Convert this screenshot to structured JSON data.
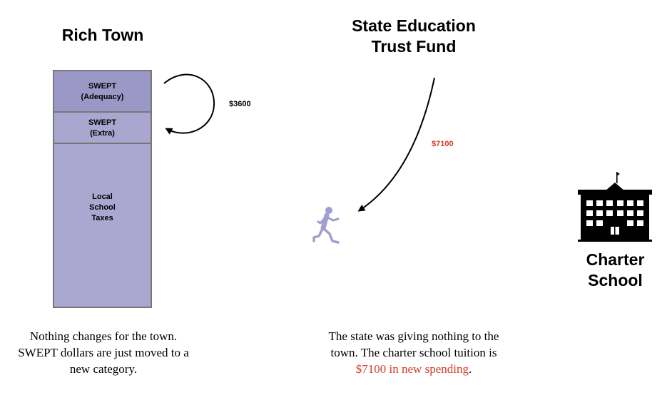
{
  "titles": {
    "rich_town": "Rich Town",
    "state_fund_line1": "State Education",
    "state_fund_line2": "Trust Fund",
    "charter_line1": "Charter",
    "charter_line2": "School"
  },
  "column": {
    "seg1_line1": "SWEPT",
    "seg1_line2": "(Adequacy)",
    "seg2_line1": "SWEPT",
    "seg2_line2": "(Extra)",
    "seg3_line1": "Local",
    "seg3_line2": "School",
    "seg3_line3": "Taxes"
  },
  "amounts": {
    "loop": "$3600",
    "state_to_student": "$7100"
  },
  "captions": {
    "left_line1": "Nothing changes for the town.",
    "left_line2": "SWEPT dollars are just moved to a",
    "left_line3": "new category.",
    "right_line1": "The state was giving nothing to the",
    "right_line2": "town.  The charter school tuition is",
    "right_highlight": "$7100 in new spending",
    "right_end": "."
  },
  "colors": {
    "segment_adequacy": "#9b98c7",
    "segment_extra": "#a9a6d0",
    "segment_local": "#aaa8d1",
    "student": "#a19ed0",
    "highlight": "#d63b2a"
  },
  "icons": {
    "student": "running-child-icon",
    "school": "school-building-icon"
  }
}
